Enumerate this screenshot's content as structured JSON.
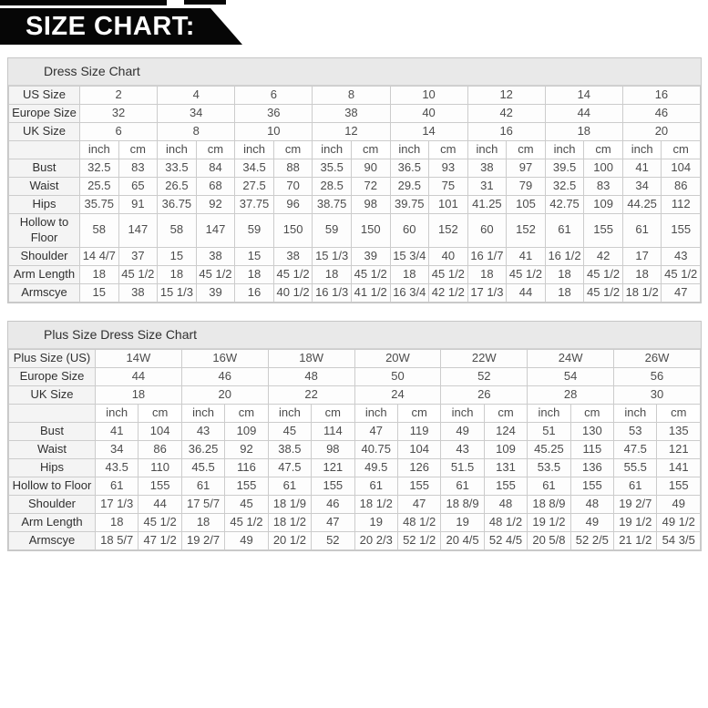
{
  "banner": {
    "title": "SIZE CHART:"
  },
  "tables": [
    {
      "title": "Dress Size Chart",
      "units": [
        "inch",
        "cm"
      ],
      "size_rows": [
        {
          "label": "US Size",
          "values": [
            "2",
            "4",
            "6",
            "8",
            "10",
            "12",
            "14",
            "16"
          ]
        },
        {
          "label": "Europe Size",
          "values": [
            "32",
            "34",
            "36",
            "38",
            "40",
            "42",
            "44",
            "46"
          ]
        },
        {
          "label": "UK Size",
          "values": [
            "6",
            "8",
            "10",
            "12",
            "14",
            "16",
            "18",
            "20"
          ]
        }
      ],
      "measure_rows": [
        {
          "label": "Bust",
          "cells": [
            "32.5",
            "83",
            "33.5",
            "84",
            "34.5",
            "88",
            "35.5",
            "90",
            "36.5",
            "93",
            "38",
            "97",
            "39.5",
            "100",
            "41",
            "104"
          ]
        },
        {
          "label": "Waist",
          "cells": [
            "25.5",
            "65",
            "26.5",
            "68",
            "27.5",
            "70",
            "28.5",
            "72",
            "29.5",
            "75",
            "31",
            "79",
            "32.5",
            "83",
            "34",
            "86"
          ]
        },
        {
          "label": "Hips",
          "cells": [
            "35.75",
            "91",
            "36.75",
            "92",
            "37.75",
            "96",
            "38.75",
            "98",
            "39.75",
            "101",
            "41.25",
            "105",
            "42.75",
            "109",
            "44.25",
            "112"
          ]
        },
        {
          "label": "Hollow to Floor",
          "cells": [
            "58",
            "147",
            "58",
            "147",
            "59",
            "150",
            "59",
            "150",
            "60",
            "152",
            "60",
            "152",
            "61",
            "155",
            "61",
            "155"
          ]
        },
        {
          "label": "Shoulder",
          "cells": [
            "14 4/7",
            "37",
            "15",
            "38",
            "15",
            "38",
            "15 1/3",
            "39",
            "15 3/4",
            "40",
            "16 1/7",
            "41",
            "16 1/2",
            "42",
            "17",
            "43"
          ]
        },
        {
          "label": "Arm Length",
          "cells": [
            "18",
            "45 1/2",
            "18",
            "45 1/2",
            "18",
            "45 1/2",
            "18",
            "45 1/2",
            "18",
            "45 1/2",
            "18",
            "45 1/2",
            "18",
            "45 1/2",
            "18",
            "45 1/2"
          ]
        },
        {
          "label": "Armscye",
          "cells": [
            "15",
            "38",
            "15 1/3",
            "39",
            "16",
            "40 1/2",
            "16 1/3",
            "41 1/2",
            "16 3/4",
            "42 1/2",
            "17 1/3",
            "44",
            "18",
            "45 1/2",
            "18 1/2",
            "47"
          ]
        }
      ]
    },
    {
      "title": "Plus Size Dress Size Chart",
      "units": [
        "inch",
        "cm"
      ],
      "size_rows": [
        {
          "label": "Plus Size (US)",
          "values": [
            "14W",
            "16W",
            "18W",
            "20W",
            "22W",
            "24W",
            "26W"
          ]
        },
        {
          "label": "Europe Size",
          "values": [
            "44",
            "46",
            "48",
            "50",
            "52",
            "54",
            "56"
          ]
        },
        {
          "label": "UK Size",
          "values": [
            "18",
            "20",
            "22",
            "24",
            "26",
            "28",
            "30"
          ]
        }
      ],
      "measure_rows": [
        {
          "label": "Bust",
          "cells": [
            "41",
            "104",
            "43",
            "109",
            "45",
            "114",
            "47",
            "119",
            "49",
            "124",
            "51",
            "130",
            "53",
            "135"
          ]
        },
        {
          "label": "Waist",
          "cells": [
            "34",
            "86",
            "36.25",
            "92",
            "38.5",
            "98",
            "40.75",
            "104",
            "43",
            "109",
            "45.25",
            "115",
            "47.5",
            "121"
          ]
        },
        {
          "label": "Hips",
          "cells": [
            "43.5",
            "110",
            "45.5",
            "116",
            "47.5",
            "121",
            "49.5",
            "126",
            "51.5",
            "131",
            "53.5",
            "136",
            "55.5",
            "141"
          ]
        },
        {
          "label": "Hollow to Floor",
          "cells": [
            "61",
            "155",
            "61",
            "155",
            "61",
            "155",
            "61",
            "155",
            "61",
            "155",
            "61",
            "155",
            "61",
            "155"
          ]
        },
        {
          "label": "Shoulder",
          "cells": [
            "17 1/3",
            "44",
            "17 5/7",
            "45",
            "18 1/9",
            "46",
            "18 1/2",
            "47",
            "18 8/9",
            "48",
            "18 8/9",
            "48",
            "19 2/7",
            "49"
          ]
        },
        {
          "label": "Arm Length",
          "cells": [
            "18",
            "45 1/2",
            "18",
            "45 1/2",
            "18 1/2",
            "47",
            "19",
            "48 1/2",
            "19",
            "48 1/2",
            "19 1/2",
            "49",
            "19 1/2",
            "49 1/2"
          ]
        },
        {
          "label": "Armscye",
          "cells": [
            "18 5/7",
            "47 1/2",
            "19 2/7",
            "49",
            "20 1/2",
            "52",
            "20 2/3",
            "52 1/2",
            "20 4/5",
            "52 4/5",
            "20 5/8",
            "52 2/5",
            "21 1/2",
            "54 3/5"
          ]
        }
      ]
    }
  ]
}
